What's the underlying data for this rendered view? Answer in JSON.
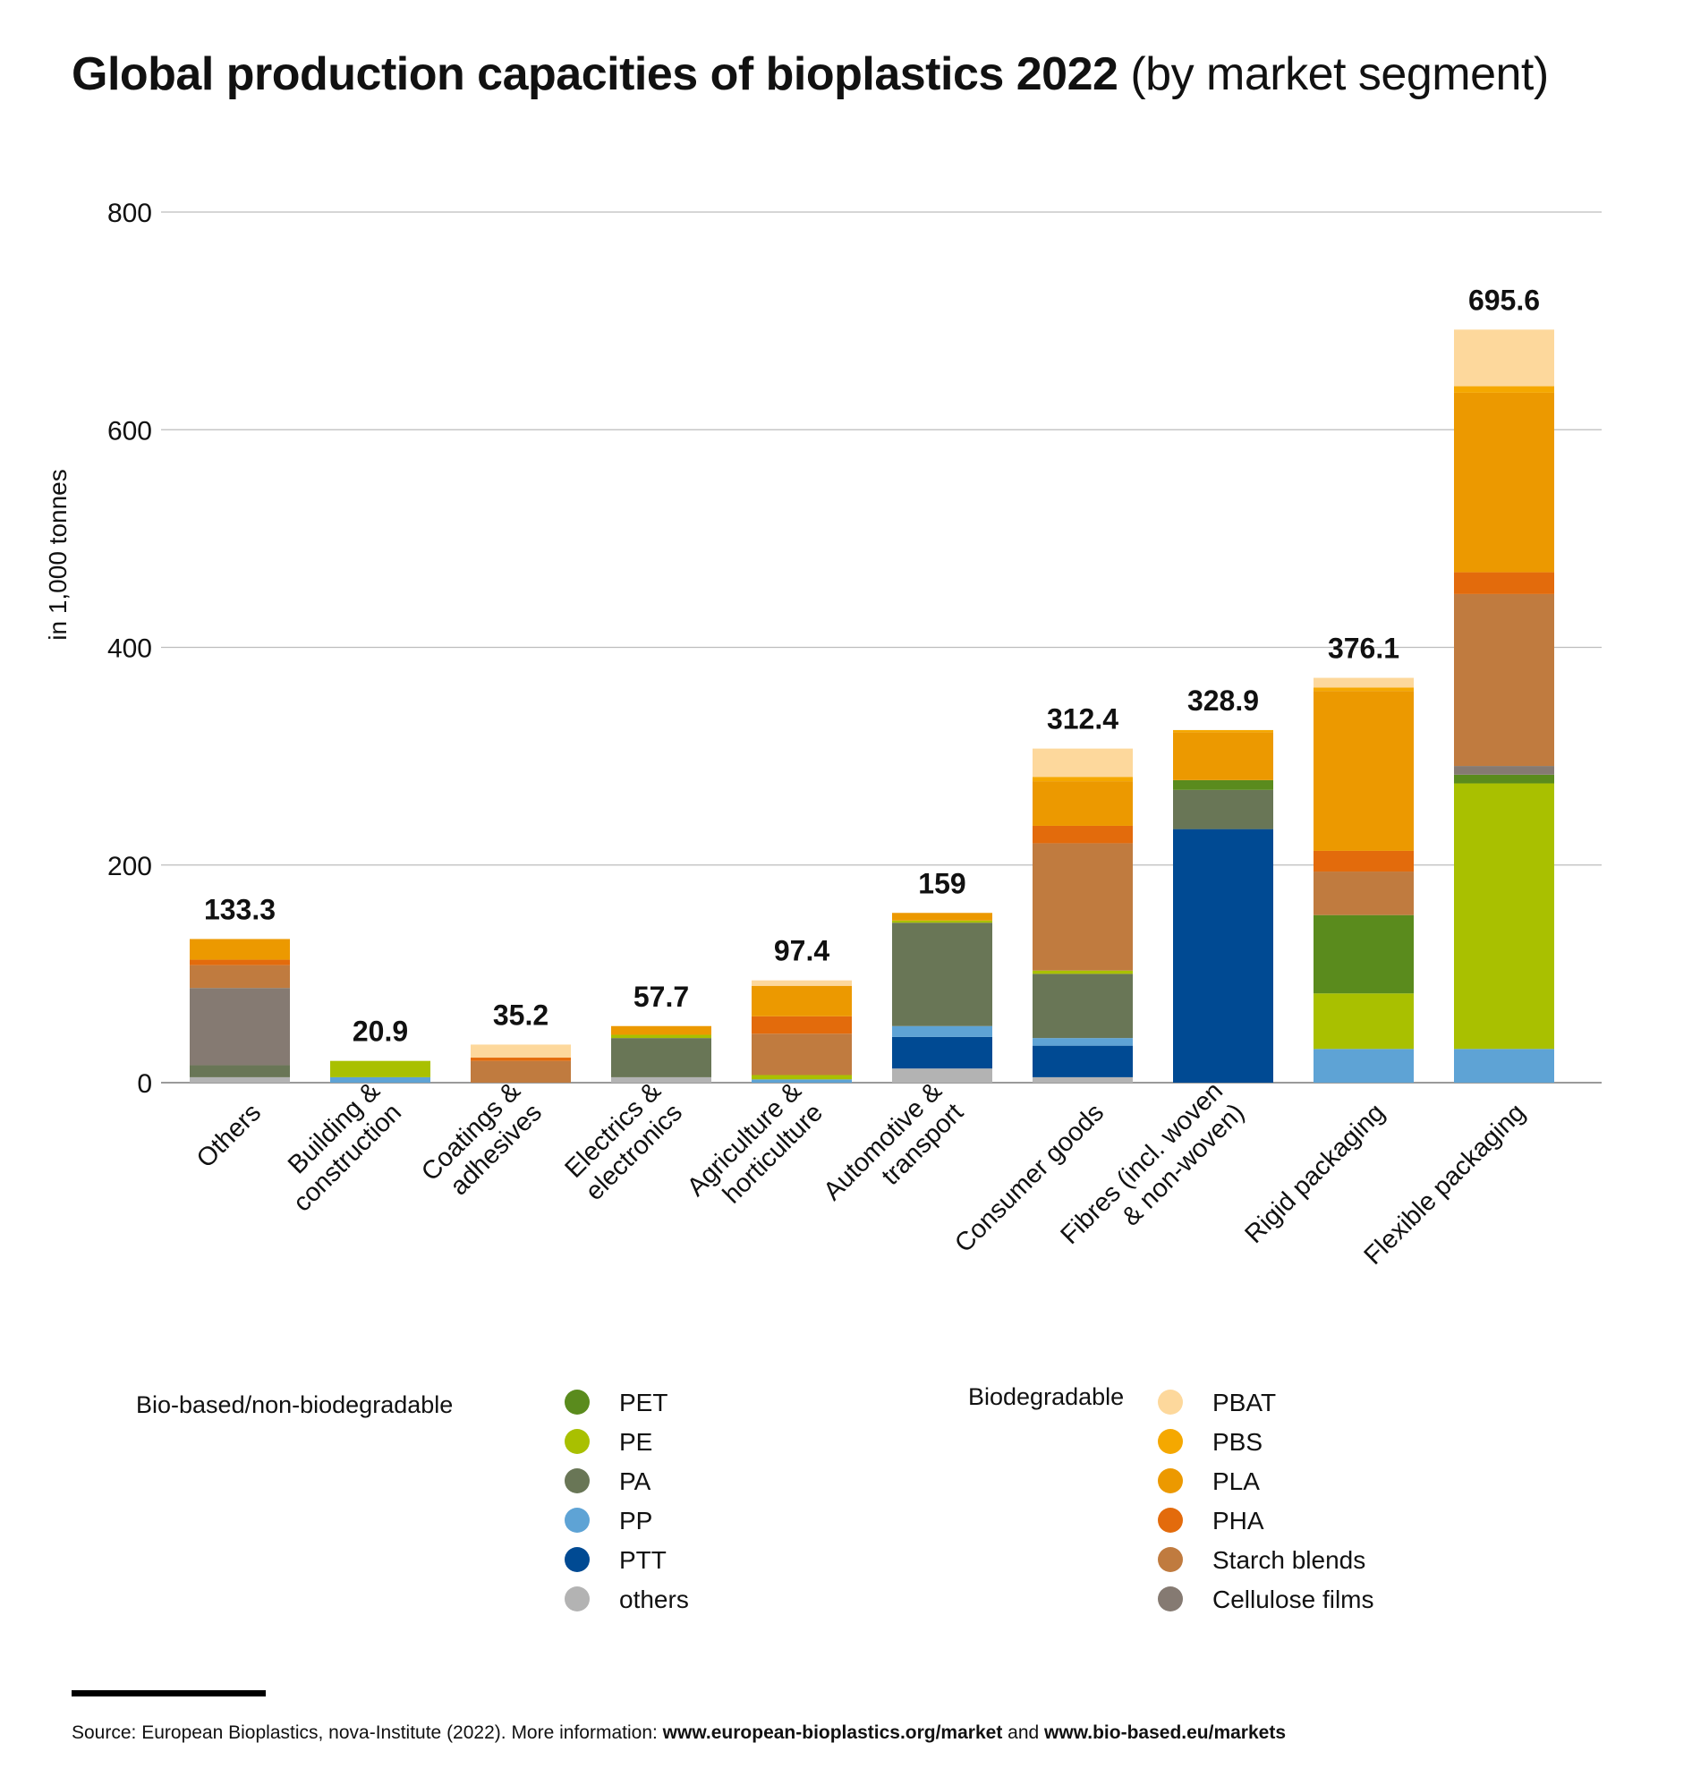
{
  "title": {
    "bold": "Global production capacities of bioplastics 2022",
    "rest": " (by market segment)"
  },
  "chart_data": {
    "type": "bar",
    "stacked": true,
    "ylabel": "in 1,000 tonnes",
    "ylim": [
      0,
      800
    ],
    "yticks": [
      0,
      200,
      400,
      600,
      800
    ],
    "grid": true,
    "categories": [
      "Others",
      "Building & construction",
      "Coatings & adhesives",
      "Electrics & electronics",
      "Agriculture & horticulture",
      "Automotive & transport",
      "Consumer goods",
      "Fibres (incl. woven & non-woven)",
      "Rigid packaging",
      "Flexible packaging"
    ],
    "category_lines": [
      [
        "Others"
      ],
      [
        "Building &",
        "construction"
      ],
      [
        "Coatings &",
        "adhesives"
      ],
      [
        "Electrics &",
        "electronics"
      ],
      [
        "Agriculture &",
        "horticulture"
      ],
      [
        "Automotive &",
        "transport"
      ],
      [
        "Consumer goods"
      ],
      [
        "Fibres (incl. woven",
        "& non-woven)"
      ],
      [
        "Rigid packaging"
      ],
      [
        "Flexible packaging"
      ]
    ],
    "totals": [
      "133.3",
      "20.9",
      "35.2",
      "57.7",
      "97.4",
      "159",
      "312.4",
      "328.9",
      "376.1",
      "695.6"
    ],
    "series": [
      {
        "name": "others",
        "color": "#b3b3b3",
        "values": [
          5,
          0,
          0,
          5,
          0,
          13,
          5,
          0,
          0,
          0
        ]
      },
      {
        "name": "PTT",
        "color": "#004a93",
        "values": [
          0,
          0,
          0,
          0,
          0,
          29,
          29,
          233,
          0,
          0
        ]
      },
      {
        "name": "PP",
        "color": "#5ea3d5",
        "values": [
          0,
          5,
          0,
          0,
          3,
          10,
          7,
          0,
          31,
          31
        ]
      },
      {
        "name": "PA",
        "color": "#697656",
        "values": [
          11,
          0,
          0,
          36,
          0,
          95,
          59,
          36,
          0,
          0
        ]
      },
      {
        "name": "PE",
        "color": "#a9c000",
        "values": [
          0,
          15,
          0,
          3,
          4,
          2,
          3,
          0,
          51,
          244
        ]
      },
      {
        "name": "PET",
        "color": "#5a8b1d",
        "values": [
          0,
          0,
          0,
          0,
          0,
          0,
          0,
          9,
          72,
          8
        ]
      },
      {
        "name": "Cellulose films",
        "color": "#857a72",
        "values": [
          71,
          0,
          0,
          0,
          0,
          0,
          0,
          0,
          0,
          8
        ]
      },
      {
        "name": "Starch blends",
        "color": "#c07b3f",
        "values": [
          21,
          0,
          20,
          0,
          38,
          0,
          117,
          0,
          40,
          158
        ]
      },
      {
        "name": "PHA",
        "color": "#e36b0c",
        "values": [
          5,
          0,
          3,
          0,
          16,
          0,
          16,
          0,
          19,
          20
        ]
      },
      {
        "name": "PLA",
        "color": "#ec9900",
        "values": [
          19,
          0,
          0,
          8,
          28,
          7,
          41,
          44,
          147,
          165
        ]
      },
      {
        "name": "PBS",
        "color": "#f5a800",
        "values": [
          0,
          0,
          0,
          0,
          0,
          0,
          4,
          2,
          3,
          6
        ]
      },
      {
        "name": "PBAT",
        "color": "#fdd89c",
        "values": [
          0,
          0,
          12,
          0,
          5,
          0,
          26,
          0,
          9,
          52
        ]
      }
    ],
    "legend": {
      "groups": [
        {
          "label": "Bio-based/non-biodegradable",
          "items": [
            {
              "name": "PET",
              "color": "#5a8b1d"
            },
            {
              "name": "PE",
              "color": "#a9c000"
            },
            {
              "name": "PA",
              "color": "#697656"
            },
            {
              "name": "PP",
              "color": "#5ea3d5"
            },
            {
              "name": "PTT",
              "color": "#004a93"
            },
            {
              "name": "others",
              "color": "#b3b3b3"
            }
          ]
        },
        {
          "label": "Biodegradable",
          "items": [
            {
              "name": "PBAT",
              "color": "#fdd89c"
            },
            {
              "name": "PBS",
              "color": "#f5a800"
            },
            {
              "name": "PLA",
              "color": "#ec9900"
            },
            {
              "name": "PHA",
              "color": "#e36b0c"
            },
            {
              "name": "Starch blends",
              "color": "#c07b3f"
            },
            {
              "name": "Cellulose films",
              "color": "#857a72"
            }
          ]
        }
      ]
    }
  },
  "source": {
    "prefix": "Source: European Bioplastics, nova-Institute (2022). More information: ",
    "link1": "www.european-bioplastics.org/market",
    "middle": " and ",
    "link2": "www.bio-based.eu/markets"
  }
}
